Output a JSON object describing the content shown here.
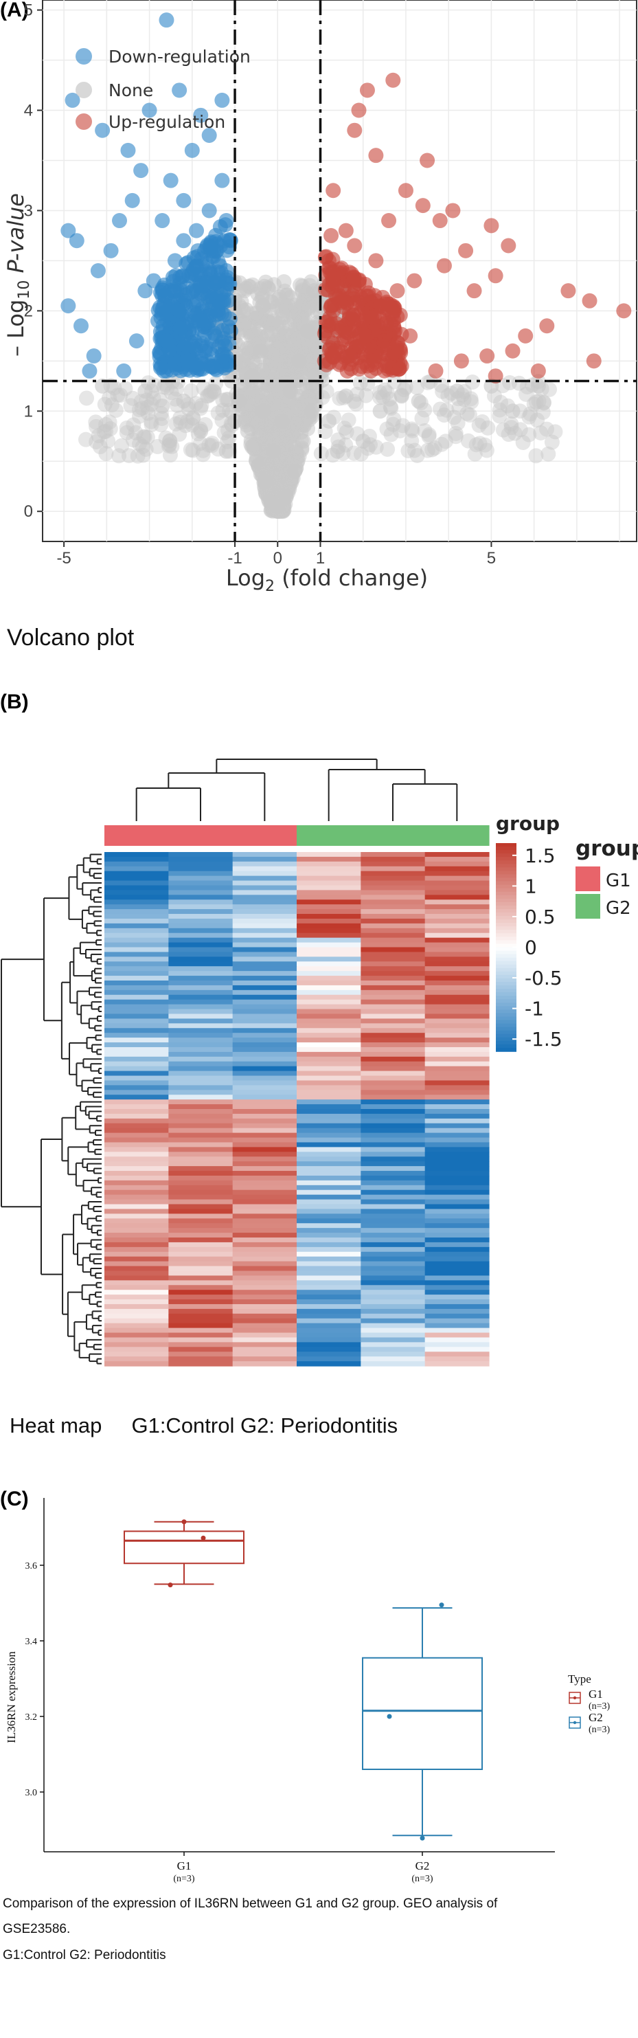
{
  "panels": {
    "a_label": "(A)",
    "b_label": "(B)",
    "c_label": "(C)"
  },
  "captions": {
    "volcano": "Volcano plot",
    "heatmap": "Heat map     G1:Control G2: Periodontitis",
    "boxplot_line1": "Comparison of the expression of IL36RN between G1 and G2 group. GEO analysis of",
    "boxplot_line2": "GSE23586.",
    "boxplot_line3": "G1:Control G2: Periodontitis"
  },
  "colors": {
    "down": "#2e86c8",
    "none": "#c8c8c8",
    "up": "#c8463a",
    "g1": "#e8646a",
    "g2": "#6cbf74",
    "heat_low": "#1670b8",
    "heat_mid": "#ffffff",
    "heat_high": "#c0392b",
    "box_g1": "#b5362d",
    "box_g2": "#2b7fb0"
  },
  "chart_data": [
    {
      "type": "scatter",
      "title": "",
      "xlabel": "Log2 (fold change)",
      "ylabel": "-Log10 P-value",
      "xlim": [
        -5.5,
        8.4
      ],
      "ylim": [
        -0.3,
        5.1
      ],
      "xticks": [
        -5,
        -1,
        0,
        1,
        5
      ],
      "yticks": [
        0,
        1,
        2,
        3,
        4,
        5
      ],
      "thresholds": {
        "fc": [
          -1,
          1
        ],
        "p": 1.3
      },
      "legend": {
        "placement": "top-left",
        "entries": [
          "Down-regulation",
          "None",
          "Up-regulation"
        ]
      },
      "series": [
        {
          "name": "Down-regulation",
          "points": [
            [
              -2.6,
              4.9
            ],
            [
              -4.8,
              4.1
            ],
            [
              -2.3,
              4.2
            ],
            [
              -3.0,
              4.0
            ],
            [
              -1.3,
              4.1
            ],
            [
              -1.8,
              3.95
            ],
            [
              -4.1,
              3.8
            ],
            [
              -3.5,
              3.6
            ],
            [
              -1.6,
              3.75
            ],
            [
              -2.0,
              3.6
            ],
            [
              -3.2,
              3.4
            ],
            [
              -2.5,
              3.3
            ],
            [
              -4.9,
              2.8
            ],
            [
              -4.7,
              2.7
            ],
            [
              -4.2,
              2.4
            ],
            [
              -3.9,
              2.6
            ],
            [
              -4.9,
              2.05
            ],
            [
              -4.6,
              1.85
            ],
            [
              -4.3,
              1.55
            ],
            [
              -3.6,
              1.4
            ],
            [
              -3.1,
              2.2
            ],
            [
              -2.8,
              1.9
            ],
            [
              -3.3,
              1.7
            ],
            [
              -2.7,
              2.9
            ],
            [
              -2.2,
              3.1
            ],
            [
              -1.9,
              2.8
            ],
            [
              -1.5,
              2.6
            ],
            [
              -1.2,
              2.4
            ],
            [
              -1.1,
              1.8
            ],
            [
              -1.4,
              2.0
            ],
            [
              -1.7,
              1.6
            ],
            [
              -2.1,
              1.5
            ],
            [
              -2.4,
              2.5
            ],
            [
              -2.9,
              2.3
            ],
            [
              -1.3,
              3.3
            ],
            [
              -1.6,
              3.0
            ],
            [
              -3.7,
              2.9
            ],
            [
              -4.4,
              1.4
            ],
            [
              -2.6,
              1.7
            ],
            [
              -1.9,
              2.2
            ],
            [
              -1.5,
              1.45
            ],
            [
              -1.2,
              2.9
            ],
            [
              -2.3,
              2.0
            ],
            [
              -3.4,
              3.1
            ],
            [
              -1.8,
              1.9
            ],
            [
              -2.2,
              2.7
            ],
            [
              -1.4,
              2.3
            ],
            [
              -1.1,
              2.7
            ],
            [
              -2.0,
              1.65
            ],
            [
              -1.3,
              1.55
            ]
          ]
        },
        {
          "name": "None",
          "points": [
            [
              -0.9,
              1.1
            ],
            [
              -0.7,
              0.8
            ],
            [
              -0.5,
              0.5
            ],
            [
              -0.3,
              0.3
            ],
            [
              -0.2,
              0.1
            ],
            [
              0.0,
              0.05
            ],
            [
              0.2,
              0.15
            ],
            [
              0.4,
              0.4
            ],
            [
              0.6,
              0.7
            ],
            [
              0.8,
              1.0
            ],
            [
              0.9,
              1.25
            ],
            [
              -1.5,
              1.2
            ],
            [
              -2.2,
              1.1
            ],
            [
              -3.1,
              1.2
            ],
            [
              -4.1,
              1.25
            ],
            [
              1.6,
              1.15
            ],
            [
              2.4,
              1.0
            ],
            [
              3.3,
              1.1
            ],
            [
              4.2,
              1.2
            ],
            [
              5.5,
              1.0
            ],
            [
              6.1,
              1.25
            ],
            [
              -0.6,
              1.35
            ],
            [
              -0.4,
              1.6
            ],
            [
              0.5,
              1.5
            ],
            [
              0.7,
              1.8
            ],
            [
              -0.8,
              2.0
            ],
            [
              0.85,
              2.2
            ],
            [
              -1.0,
              0.9
            ],
            [
              1.2,
              0.9
            ],
            [
              -1.8,
              0.8
            ],
            [
              2.0,
              0.7
            ],
            [
              -0.1,
              0.6
            ],
            [
              0.1,
              0.9
            ],
            [
              -2.7,
              1.05
            ],
            [
              2.9,
              1.15
            ],
            [
              -0.35,
              1.0
            ],
            [
              0.3,
              1.2
            ],
            [
              -1.2,
              0.6
            ],
            [
              1.4,
              0.6
            ],
            [
              5.0,
              1.25
            ]
          ]
        },
        {
          "name": "Up-regulation",
          "points": [
            [
              2.7,
              4.3
            ],
            [
              2.1,
              4.2
            ],
            [
              1.9,
              4.0
            ],
            [
              1.8,
              3.8
            ],
            [
              2.3,
              3.55
            ],
            [
              3.5,
              3.5
            ],
            [
              3.0,
              3.2
            ],
            [
              3.4,
              3.05
            ],
            [
              1.3,
              3.2
            ],
            [
              2.6,
              2.9
            ],
            [
              3.8,
              2.9
            ],
            [
              4.1,
              3.0
            ],
            [
              5.0,
              2.85
            ],
            [
              5.4,
              2.65
            ],
            [
              4.4,
              2.6
            ],
            [
              3.9,
              2.45
            ],
            [
              3.2,
              2.3
            ],
            [
              2.8,
              2.2
            ],
            [
              4.6,
              2.2
            ],
            [
              5.1,
              2.35
            ],
            [
              6.8,
              2.2
            ],
            [
              7.3,
              2.1
            ],
            [
              8.1,
              2.0
            ],
            [
              6.3,
              1.85
            ],
            [
              5.8,
              1.75
            ],
            [
              5.5,
              1.6
            ],
            [
              4.9,
              1.55
            ],
            [
              4.3,
              1.5
            ],
            [
              3.7,
              1.4
            ],
            [
              2.9,
              1.45
            ],
            [
              6.1,
              1.4
            ],
            [
              7.4,
              1.5
            ],
            [
              5.1,
              1.35
            ],
            [
              1.2,
              2.5
            ],
            [
              1.5,
              2.1
            ],
            [
              1.4,
              1.8
            ],
            [
              1.7,
              1.55
            ],
            [
              2.0,
              1.9
            ],
            [
              2.3,
              2.5
            ],
            [
              1.6,
              2.8
            ],
            [
              1.9,
              2.3
            ],
            [
              2.5,
              1.7
            ],
            [
              1.1,
              1.5
            ],
            [
              1.3,
              2.0
            ],
            [
              2.1,
              1.45
            ],
            [
              1.8,
              2.65
            ],
            [
              2.4,
              2.05
            ],
            [
              3.1,
              1.75
            ],
            [
              1.25,
              2.75
            ],
            [
              2.2,
              1.6
            ]
          ]
        }
      ]
    },
    {
      "type": "heatmap",
      "title": "",
      "column_annotation": {
        "label": "group",
        "groups": [
          "G1",
          "G1",
          "G1",
          "G2",
          "G2",
          "G2"
        ]
      },
      "legend": {
        "scale_title": "group",
        "scale_ticks": [
          1.5,
          1,
          0.5,
          0,
          -0.5,
          -1,
          -1.5
        ],
        "scale_tick_labels": [
          "1.5",
          "1",
          "0.5",
          "0",
          "-0.5",
          "-1",
          "-1.5"
        ],
        "group_title": "group",
        "group_entries": [
          "G1",
          "G2"
        ]
      },
      "blocks": [
        {
          "rows": 10,
          "pattern": [
            -1.6,
            -1.1,
            -0.7,
            0.6,
            1.1,
            1.3
          ]
        },
        {
          "rows": 8,
          "pattern": [
            -1.0,
            -0.9,
            -0.6,
            1.3,
            1.0,
            0.8
          ]
        },
        {
          "rows": 6,
          "pattern": [
            -0.8,
            -1.4,
            -1.1,
            -0.2,
            1.4,
            1.5
          ]
        },
        {
          "rows": 8,
          "pattern": [
            -0.9,
            -1.0,
            -1.2,
            0.1,
            1.1,
            1.4
          ]
        },
        {
          "rows": 6,
          "pattern": [
            -1.2,
            -0.8,
            -1.0,
            0.7,
            0.6,
            1.0
          ]
        },
        {
          "rows": 8,
          "pattern": [
            -0.7,
            -1.1,
            -1.3,
            0.5,
            1.2,
            0.7
          ]
        },
        {
          "rows": 6,
          "pattern": [
            -1.1,
            -0.6,
            -0.9,
            0.4,
            0.9,
            1.1
          ]
        },
        {
          "rows": 10,
          "pattern": [
            0.9,
            1.1,
            1.0,
            -1.3,
            -1.6,
            -1.0
          ]
        },
        {
          "rows": 10,
          "pattern": [
            0.7,
            1.0,
            1.2,
            -0.7,
            -1.2,
            -1.7
          ]
        },
        {
          "rows": 10,
          "pattern": [
            0.6,
            1.2,
            1.0,
            -0.9,
            -1.0,
            -1.4
          ]
        },
        {
          "rows": 10,
          "pattern": [
            1.0,
            0.8,
            1.1,
            -0.5,
            -1.3,
            -1.5
          ]
        },
        {
          "rows": 8,
          "pattern": [
            0.5,
            1.3,
            0.9,
            -1.0,
            -0.8,
            -1.2
          ]
        },
        {
          "rows": 8,
          "pattern": [
            0.8,
            0.9,
            0.7,
            -1.5,
            -0.6,
            0.2
          ]
        }
      ]
    },
    {
      "type": "box",
      "title": "",
      "xlabel": "",
      "ylabel": "IL36RN expression",
      "ylim": [
        2.86,
        3.76
      ],
      "yticks": [
        3.0,
        3.2,
        3.4,
        3.6
      ],
      "ytick_labels": [
        "3.0",
        "3.2",
        "3.4",
        "3.6"
      ],
      "categories": [
        "G1",
        "G2"
      ],
      "category_n": [
        "(n=3)",
        "(n=3)"
      ],
      "legend": {
        "title": "Type",
        "placement": "right",
        "entries": [
          {
            "name": "G1",
            "n": "(n=3)"
          },
          {
            "name": "G2",
            "n": "(n=3)"
          }
        ]
      },
      "boxes": [
        {
          "name": "G1",
          "min": 3.55,
          "q1": 3.605,
          "median": 3.665,
          "q3": 3.69,
          "max": 3.715,
          "points": [
            3.715,
            3.672,
            3.548
          ]
        },
        {
          "name": "G2",
          "min": 2.885,
          "q1": 3.06,
          "median": 3.215,
          "q3": 3.355,
          "max": 3.487,
          "points": [
            3.495,
            3.2,
            2.878
          ]
        }
      ]
    }
  ]
}
